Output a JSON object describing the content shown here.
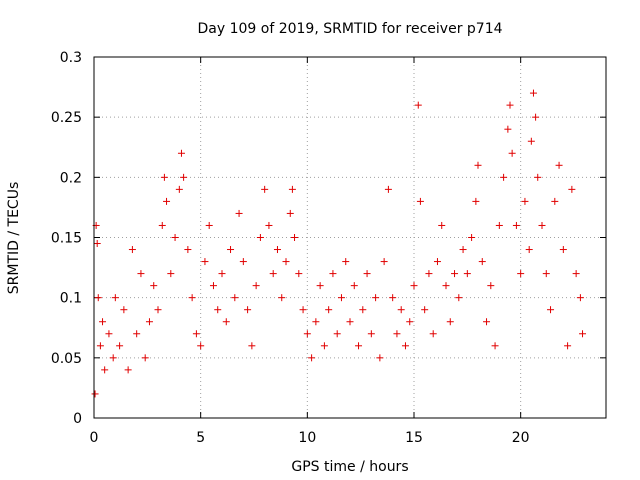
{
  "chart_data": {
    "type": "scatter",
    "title": "Day 109 of 2019, SRMTID for receiver p714",
    "xlabel": "GPS time / hours",
    "ylabel": "SRMTID / TECUs",
    "xlim": [
      0,
      24
    ],
    "ylim": [
      0,
      0.3
    ],
    "xticks": [
      0,
      5,
      10,
      15,
      20
    ],
    "xtick_labels": [
      "0",
      "5",
      "10",
      "15",
      "20"
    ],
    "yticks": [
      0,
      0.05,
      0.1,
      0.15,
      0.2,
      0.25,
      0.3
    ],
    "ytick_labels": [
      "0",
      "0.05",
      "0.1",
      "0.15",
      "0.2",
      "0.25",
      "0.3"
    ],
    "grid": true,
    "marker": "+",
    "colors": {
      "points": "#e00000",
      "grid": "#a0a0a0",
      "axes": "#000000"
    },
    "series": [
      {
        "name": "SRMTID",
        "points": [
          [
            0.05,
            0.02
          ],
          [
            0.1,
            0.16
          ],
          [
            0.15,
            0.145
          ],
          [
            0.2,
            0.1
          ],
          [
            0.3,
            0.06
          ],
          [
            0.4,
            0.08
          ],
          [
            0.5,
            0.04
          ],
          [
            0.7,
            0.07
          ],
          [
            0.9,
            0.05
          ],
          [
            1.0,
            0.1
          ],
          [
            1.2,
            0.06
          ],
          [
            1.4,
            0.09
          ],
          [
            1.6,
            0.04
          ],
          [
            1.8,
            0.14
          ],
          [
            2.0,
            0.07
          ],
          [
            2.2,
            0.12
          ],
          [
            2.4,
            0.05
          ],
          [
            2.6,
            0.08
          ],
          [
            2.8,
            0.11
          ],
          [
            3.0,
            0.09
          ],
          [
            3.2,
            0.16
          ],
          [
            3.3,
            0.2
          ],
          [
            3.4,
            0.18
          ],
          [
            3.6,
            0.12
          ],
          [
            3.8,
            0.15
          ],
          [
            4.0,
            0.19
          ],
          [
            4.1,
            0.22
          ],
          [
            4.2,
            0.2
          ],
          [
            4.4,
            0.14
          ],
          [
            4.6,
            0.1
          ],
          [
            4.8,
            0.07
          ],
          [
            5.0,
            0.06
          ],
          [
            5.2,
            0.13
          ],
          [
            5.4,
            0.16
          ],
          [
            5.6,
            0.11
          ],
          [
            5.8,
            0.09
          ],
          [
            6.0,
            0.12
          ],
          [
            6.2,
            0.08
          ],
          [
            6.4,
            0.14
          ],
          [
            6.6,
            0.1
          ],
          [
            6.8,
            0.17
          ],
          [
            7.0,
            0.13
          ],
          [
            7.2,
            0.09
          ],
          [
            7.4,
            0.06
          ],
          [
            7.6,
            0.11
          ],
          [
            7.8,
            0.15
          ],
          [
            8.0,
            0.19
          ],
          [
            8.2,
            0.16
          ],
          [
            8.4,
            0.12
          ],
          [
            8.6,
            0.14
          ],
          [
            8.8,
            0.1
          ],
          [
            9.0,
            0.13
          ],
          [
            9.2,
            0.17
          ],
          [
            9.3,
            0.19
          ],
          [
            9.4,
            0.15
          ],
          [
            9.6,
            0.12
          ],
          [
            9.8,
            0.09
          ],
          [
            10.0,
            0.07
          ],
          [
            10.2,
            0.05
          ],
          [
            10.4,
            0.08
          ],
          [
            10.6,
            0.11
          ],
          [
            10.8,
            0.06
          ],
          [
            11.0,
            0.09
          ],
          [
            11.2,
            0.12
          ],
          [
            11.4,
            0.07
          ],
          [
            11.6,
            0.1
          ],
          [
            11.8,
            0.13
          ],
          [
            12.0,
            0.08
          ],
          [
            12.2,
            0.11
          ],
          [
            12.4,
            0.06
          ],
          [
            12.6,
            0.09
          ],
          [
            12.8,
            0.12
          ],
          [
            13.0,
            0.07
          ],
          [
            13.2,
            0.1
          ],
          [
            13.4,
            0.05
          ],
          [
            13.6,
            0.13
          ],
          [
            13.8,
            0.19
          ],
          [
            14.0,
            0.1
          ],
          [
            14.2,
            0.07
          ],
          [
            14.4,
            0.09
          ],
          [
            14.6,
            0.06
          ],
          [
            14.8,
            0.08
          ],
          [
            15.0,
            0.11
          ],
          [
            15.2,
            0.26
          ],
          [
            15.3,
            0.18
          ],
          [
            15.5,
            0.09
          ],
          [
            15.7,
            0.12
          ],
          [
            15.9,
            0.07
          ],
          [
            16.1,
            0.13
          ],
          [
            16.3,
            0.16
          ],
          [
            16.5,
            0.11
          ],
          [
            16.7,
            0.08
          ],
          [
            16.9,
            0.12
          ],
          [
            17.1,
            0.1
          ],
          [
            17.3,
            0.14
          ],
          [
            17.5,
            0.12
          ],
          [
            17.7,
            0.15
          ],
          [
            17.9,
            0.18
          ],
          [
            18.0,
            0.21
          ],
          [
            18.2,
            0.13
          ],
          [
            18.4,
            0.08
          ],
          [
            18.6,
            0.11
          ],
          [
            18.8,
            0.06
          ],
          [
            19.0,
            0.16
          ],
          [
            19.2,
            0.2
          ],
          [
            19.4,
            0.24
          ],
          [
            19.5,
            0.26
          ],
          [
            19.6,
            0.22
          ],
          [
            19.8,
            0.16
          ],
          [
            20.0,
            0.12
          ],
          [
            20.2,
            0.18
          ],
          [
            20.4,
            0.14
          ],
          [
            20.5,
            0.23
          ],
          [
            20.6,
            0.27
          ],
          [
            20.7,
            0.25
          ],
          [
            20.8,
            0.2
          ],
          [
            21.0,
            0.16
          ],
          [
            21.2,
            0.12
          ],
          [
            21.4,
            0.09
          ],
          [
            21.6,
            0.18
          ],
          [
            21.8,
            0.21
          ],
          [
            22.0,
            0.14
          ],
          [
            22.2,
            0.06
          ],
          [
            22.4,
            0.19
          ],
          [
            22.6,
            0.12
          ],
          [
            22.8,
            0.1
          ],
          [
            22.9,
            0.07
          ]
        ]
      }
    ]
  }
}
